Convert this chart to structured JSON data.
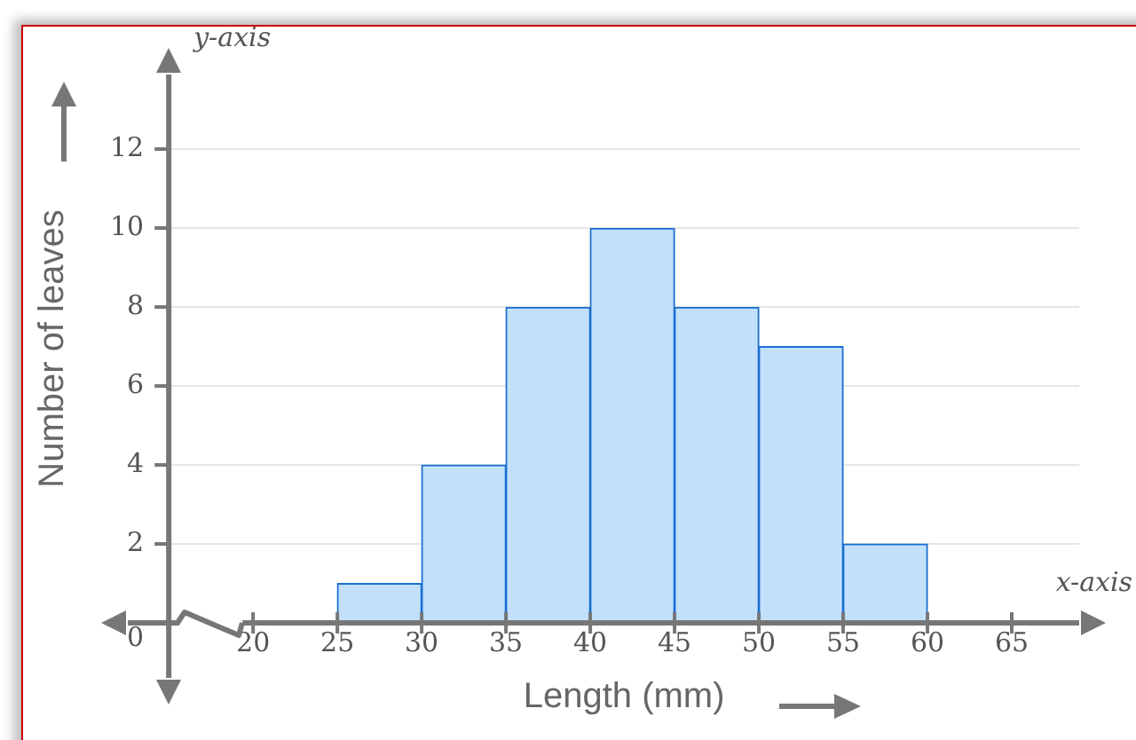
{
  "chart_data": {
    "type": "histogram",
    "xlabel": "Length (mm)",
    "ylabel": "Number of leaves",
    "bins": [
      25,
      30,
      35,
      40,
      45,
      50,
      55,
      60
    ],
    "values": [
      1,
      4,
      8,
      10,
      8,
      7,
      2
    ],
    "color": "#c3e0fb",
    "xlim": [
      15,
      69
    ],
    "xticks": [
      20,
      25,
      30,
      35,
      40,
      45,
      50,
      55,
      60,
      65
    ],
    "ylim": [
      0,
      13.9
    ],
    "yticks": [
      0,
      2,
      4,
      6,
      8,
      10,
      12
    ],
    "grid": "y",
    "legend": false,
    "annotations": [
      "y-axis",
      "x-axis"
    ]
  }
}
